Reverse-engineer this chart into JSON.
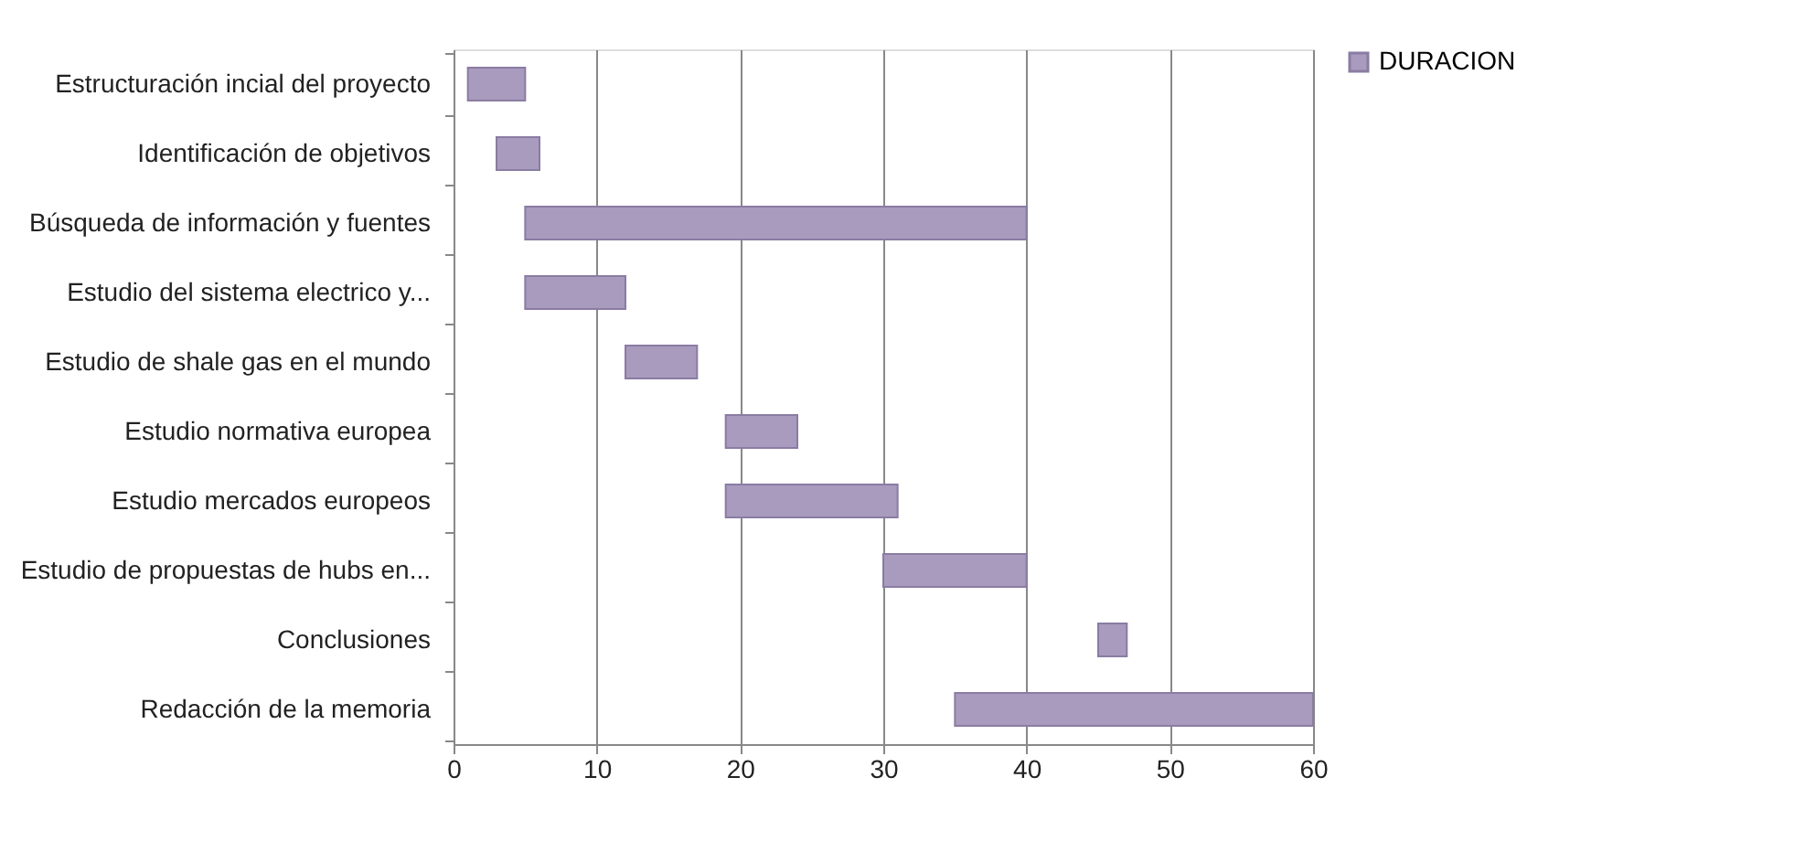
{
  "chart_data": {
    "type": "bar",
    "orientation": "horizontal",
    "categories": [
      "Estructuración incial del proyecto",
      "Identificación de objetivos",
      "Búsqueda de información y fuentes",
      "Estudio del sistema electrico y...",
      "Estudio de shale gas en el mundo",
      "Estudio normativa europea",
      "Estudio mercados europeos",
      "Estudio de propuestas de hubs en...",
      "Conclusiones",
      "Redacción de la memoria"
    ],
    "series": [
      {
        "name": "DURACION",
        "color": "#a99bbd",
        "base": [
          1,
          3,
          5,
          5,
          12,
          19,
          19,
          30,
          45,
          35
        ],
        "values": [
          4,
          3,
          35,
          7,
          5,
          5,
          12,
          10,
          2,
          25
        ]
      }
    ],
    "xlim": [
      0,
      60
    ],
    "xticks": [
      0,
      10,
      20,
      30,
      40,
      50,
      60
    ],
    "grid": "x",
    "legend": "right"
  }
}
